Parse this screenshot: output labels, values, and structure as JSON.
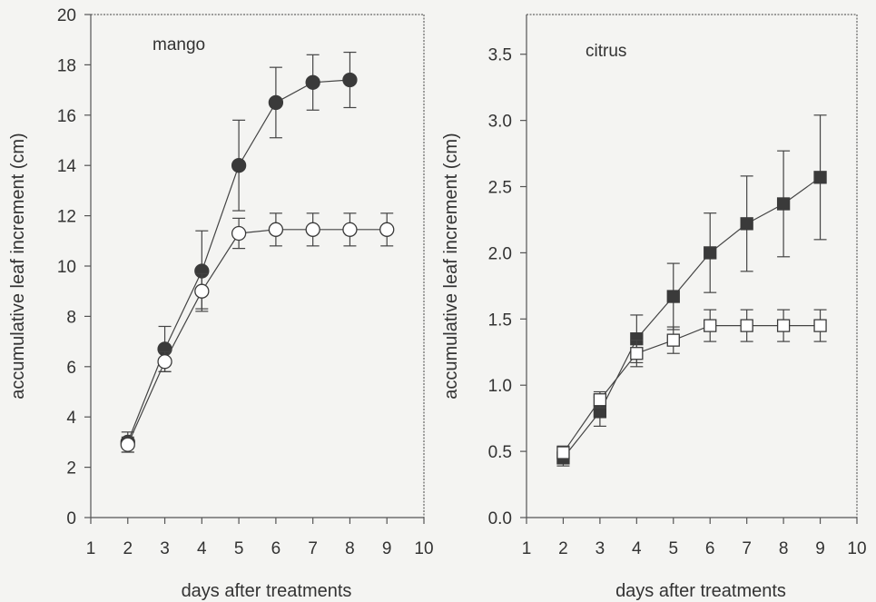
{
  "chart_data": [
    {
      "type": "line",
      "panel_label": "mango",
      "xlabel": "days after treatments",
      "ylabel": "accumulative leaf increment (cm)",
      "xlim": [
        1,
        10
      ],
      "ylim": [
        0,
        20
      ],
      "xticks": [
        "1",
        "2",
        "3",
        "4",
        "5",
        "6",
        "7",
        "8",
        "9",
        "10"
      ],
      "yticks": [
        "0",
        "2",
        "4",
        "6",
        "8",
        "10",
        "12",
        "14",
        "16",
        "18",
        "20"
      ],
      "grid": false,
      "series": [
        {
          "marker": "circle-filled",
          "color": "#3a3a3a",
          "x": [
            2,
            3,
            4,
            5,
            6,
            7,
            8
          ],
          "y": [
            3.0,
            6.7,
            9.8,
            14.0,
            16.5,
            17.3,
            17.4
          ],
          "err": [
            0.4,
            0.9,
            1.6,
            1.8,
            1.4,
            1.1,
            1.1
          ]
        },
        {
          "marker": "circle-open",
          "color": "#3a3a3a",
          "x": [
            2,
            3,
            4,
            5,
            6,
            7,
            8,
            9
          ],
          "y": [
            2.9,
            6.2,
            9.0,
            11.3,
            11.45,
            11.45,
            11.45,
            11.45
          ],
          "err": [
            0.3,
            0.4,
            0.7,
            0.6,
            0.65,
            0.65,
            0.65,
            0.65
          ]
        }
      ]
    },
    {
      "type": "line",
      "panel_label": "citrus",
      "xlabel": "days after treatments",
      "ylabel": "accumulative leaf increment (cm)",
      "xlim": [
        1,
        10
      ],
      "ylim": [
        0,
        3.8
      ],
      "xticks": [
        "1",
        "2",
        "3",
        "4",
        "5",
        "6",
        "7",
        "8",
        "9",
        "10"
      ],
      "yticks": [
        "0.0",
        "0.5",
        "1.0",
        "1.5",
        "2.0",
        "2.5",
        "3.0",
        "3.5"
      ],
      "grid": false,
      "series": [
        {
          "marker": "square-filled",
          "color": "#3a3a3a",
          "x": [
            2,
            3,
            4,
            5,
            6,
            7,
            8,
            9
          ],
          "y": [
            0.45,
            0.8,
            1.35,
            1.67,
            2.0,
            2.22,
            2.37,
            2.57
          ],
          "err": [
            0.06,
            0.11,
            0.18,
            0.25,
            0.3,
            0.36,
            0.4,
            0.47
          ]
        },
        {
          "marker": "square-open",
          "color": "#3a3a3a",
          "x": [
            2,
            3,
            4,
            5,
            6,
            7,
            8,
            9
          ],
          "y": [
            0.49,
            0.89,
            1.24,
            1.34,
            1.45,
            1.45,
            1.45,
            1.45
          ],
          "err": [
            0.05,
            0.06,
            0.1,
            0.1,
            0.12,
            0.12,
            0.12,
            0.12
          ]
        }
      ]
    }
  ]
}
